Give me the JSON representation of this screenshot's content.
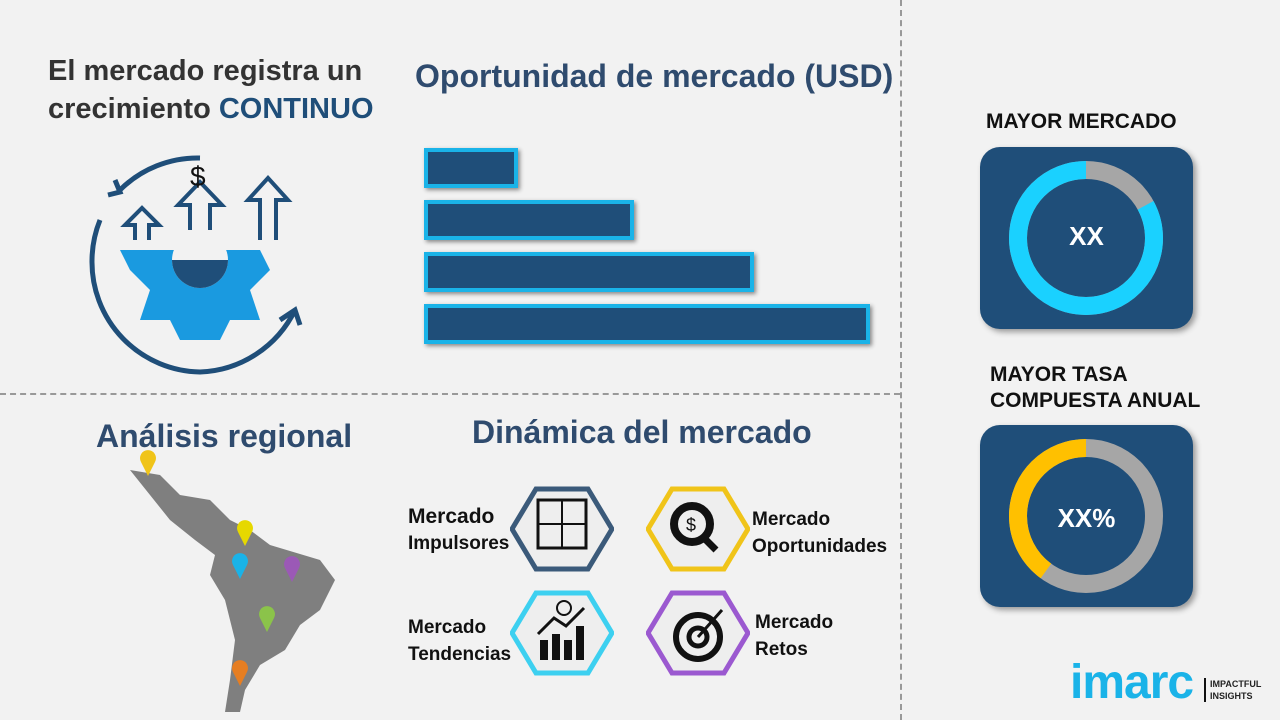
{
  "left_panel": {
    "title_part1": "El mercado registra un",
    "title_part2": "crecimiento ",
    "title_highlight": "CONTINUO",
    "icon": "growth-gear-icon",
    "currency_symbol": "$"
  },
  "opportunity": {
    "title": "Oportunidad de mercado (USD)"
  },
  "chart_data": {
    "type": "bar",
    "orientation": "horizontal",
    "categories": [
      "",
      "",
      "",
      ""
    ],
    "values": [
      0.21,
      0.47,
      0.74,
      1.0
    ],
    "title": "Oportunidad de mercado (USD)",
    "xlabel": "",
    "ylabel": "",
    "colors": {
      "fill": "#1f4e79",
      "border": "#1ab3e8"
    }
  },
  "regional": {
    "title": "Análisis regional",
    "map": "latin-america-map",
    "pin_colors": [
      "#f0c419",
      "#e6d800",
      "#1ab3e8",
      "#9b59b6",
      "#8bc34a",
      "#e67e22"
    ]
  },
  "dynamics": {
    "title": "Dinámica del mercado",
    "items": [
      {
        "line1": "Mercado",
        "line2": "Impulsores",
        "icon": "puzzle-icon",
        "color": "#3b5a7a"
      },
      {
        "line1": "Mercado",
        "line2": "Oportunidades",
        "icon": "magnifier-dollar-icon",
        "color": "#f0c419"
      },
      {
        "line1": "Mercado",
        "line2": "Tendencias",
        "icon": "growth-chart-icon",
        "color": "#3dd0f0"
      },
      {
        "line1": "Mercado",
        "line2": "Retos",
        "icon": "target-icon",
        "color": "#9b59d0"
      }
    ]
  },
  "largest_market": {
    "title": "MAYOR MERCADO",
    "value": "XX",
    "fraction": 0.83,
    "color": "#1ad1ff",
    "rest_color": "#a6a6a6"
  },
  "highest_cagr": {
    "title_line1": "MAYOR TASA",
    "title_line2": "COMPUESTA ANUAL",
    "value": "XX%",
    "fraction": 0.4,
    "color": "#ffc000",
    "rest_color": "#a6a6a6"
  },
  "logo": {
    "brand": "imarc",
    "tagline1": "IMPACTFUL",
    "tagline2": "INSIGHTS"
  }
}
